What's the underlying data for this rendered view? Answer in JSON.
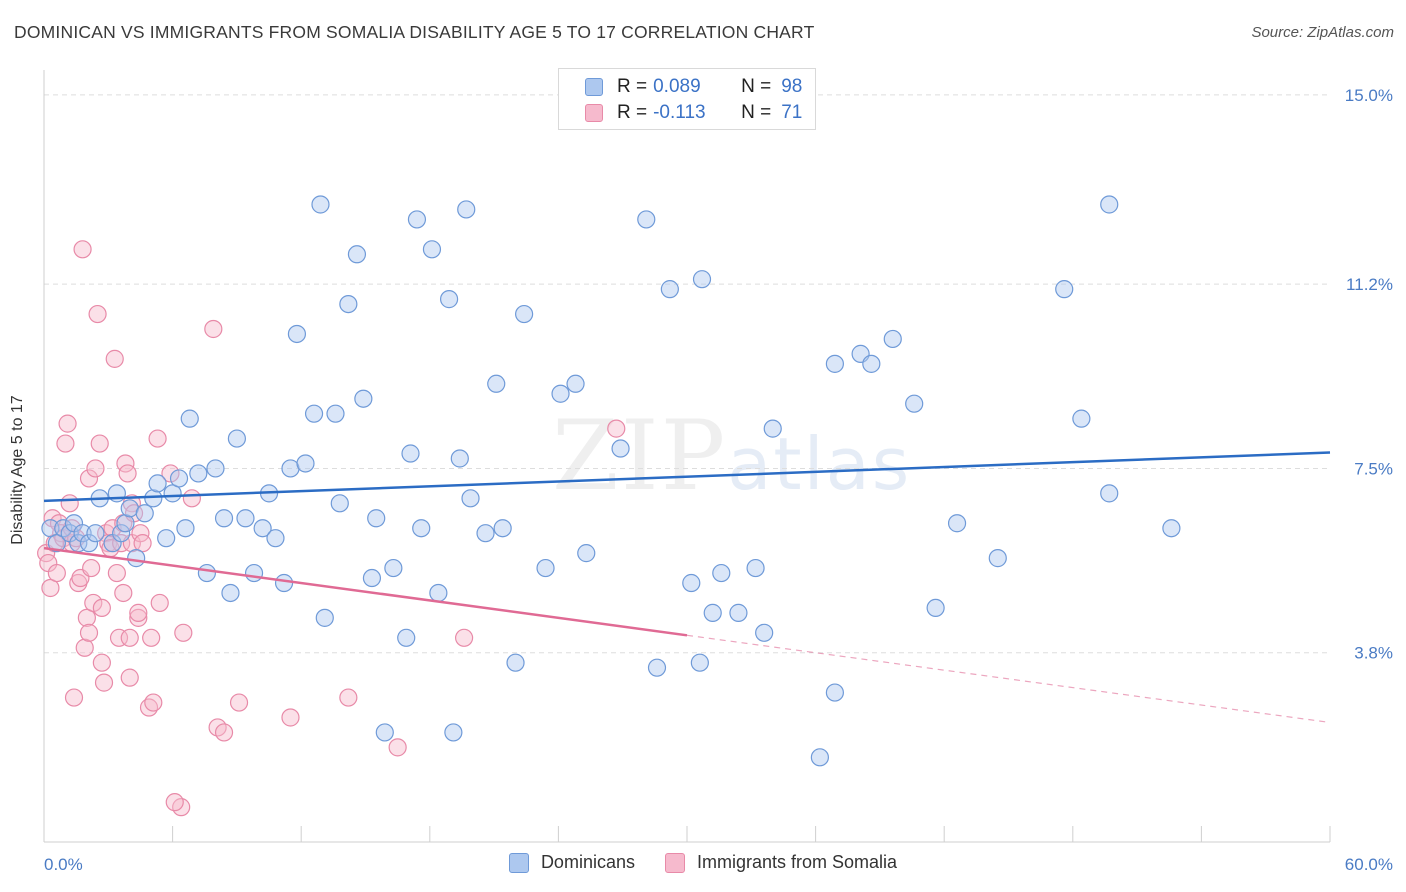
{
  "title": "DOMINICAN VS IMMIGRANTS FROM SOMALIA DISABILITY AGE 5 TO 17 CORRELATION CHART",
  "source": "Source: ZipAtlas.com",
  "watermark": {
    "zip": "ZIP",
    "atlas": "atlas"
  },
  "colors": {
    "blue_fill": "#adc8ef",
    "blue_stroke": "#6f9ad8",
    "blue_line": "#2b6cc4",
    "pink_fill": "#f6bacd",
    "pink_stroke": "#e88aa8",
    "pink_line": "#e06a94",
    "grid": "#dddddd",
    "tick_text": "#4a7bc4"
  },
  "stats": [
    {
      "r_label": "R =",
      "r_value": "0.089",
      "n_label": "N =",
      "n_value": "98"
    },
    {
      "r_label": "R =",
      "r_value": "-0.113",
      "n_label": "N =",
      "n_value": "71"
    }
  ],
  "chart_data": {
    "type": "scatter",
    "title": "DOMINICAN VS IMMIGRANTS FROM SOMALIA DISABILITY AGE 5 TO 17 CORRELATION CHART",
    "xlabel": "",
    "ylabel": "Disability Age 5 to 17",
    "xlim": [
      0,
      60
    ],
    "ylim": [
      0,
      15.5
    ],
    "x_tick_labels": [
      "0.0%",
      "60.0%"
    ],
    "y_ticks": [
      3.8,
      7.5,
      11.2,
      15.0
    ],
    "y_tick_labels": [
      "3.8%",
      "7.5%",
      "11.2%",
      "15.0%"
    ],
    "grid": true,
    "legend_position": "bottom",
    "series": [
      {
        "name": "Dominicans",
        "color": "#6f9ad8",
        "r": 0.089,
        "n": 98,
        "trend": {
          "x": [
            0,
            60
          ],
          "y": [
            6.85,
            7.82
          ]
        },
        "points": [
          [
            0.3,
            6.3
          ],
          [
            0.6,
            6.0
          ],
          [
            0.9,
            6.3
          ],
          [
            1.2,
            6.2
          ],
          [
            1.4,
            6.4
          ],
          [
            1.6,
            6.0
          ],
          [
            1.8,
            6.2
          ],
          [
            2.1,
            6.0
          ],
          [
            2.4,
            6.2
          ],
          [
            2.6,
            6.9
          ],
          [
            3.2,
            6.0
          ],
          [
            3.4,
            7.0
          ],
          [
            3.6,
            6.2
          ],
          [
            3.8,
            6.4
          ],
          [
            4.0,
            6.7
          ],
          [
            4.3,
            5.7
          ],
          [
            4.7,
            6.6
          ],
          [
            5.1,
            6.9
          ],
          [
            5.3,
            7.2
          ],
          [
            5.7,
            6.1
          ],
          [
            6.0,
            7.0
          ],
          [
            6.3,
            7.3
          ],
          [
            6.6,
            6.3
          ],
          [
            6.8,
            8.5
          ],
          [
            7.2,
            7.4
          ],
          [
            7.6,
            5.4
          ],
          [
            8.0,
            7.5
          ],
          [
            8.4,
            6.5
          ],
          [
            8.7,
            5.0
          ],
          [
            9.0,
            8.1
          ],
          [
            9.4,
            6.5
          ],
          [
            9.8,
            5.4
          ],
          [
            10.2,
            6.3
          ],
          [
            10.5,
            7.0
          ],
          [
            10.8,
            6.1
          ],
          [
            11.2,
            5.2
          ],
          [
            11.5,
            7.5
          ],
          [
            11.8,
            10.2
          ],
          [
            12.2,
            7.6
          ],
          [
            12.6,
            8.6
          ],
          [
            12.9,
            12.8
          ],
          [
            13.1,
            4.5
          ],
          [
            13.6,
            8.6
          ],
          [
            13.8,
            6.8
          ],
          [
            14.2,
            10.8
          ],
          [
            14.6,
            11.8
          ],
          [
            14.9,
            8.9
          ],
          [
            15.3,
            5.3
          ],
          [
            15.5,
            6.5
          ],
          [
            15.9,
            2.2
          ],
          [
            16.3,
            5.5
          ],
          [
            16.9,
            4.1
          ],
          [
            17.1,
            7.8
          ],
          [
            17.4,
            12.5
          ],
          [
            17.6,
            6.3
          ],
          [
            18.1,
            11.9
          ],
          [
            18.4,
            5.0
          ],
          [
            18.9,
            10.9
          ],
          [
            19.1,
            2.2
          ],
          [
            19.4,
            7.7
          ],
          [
            19.7,
            12.7
          ],
          [
            19.9,
            6.9
          ],
          [
            20.6,
            6.2
          ],
          [
            21.1,
            9.2
          ],
          [
            21.4,
            6.3
          ],
          [
            22.0,
            3.6
          ],
          [
            22.4,
            10.6
          ],
          [
            23.4,
            5.5
          ],
          [
            24.1,
            9.0
          ],
          [
            24.8,
            9.2
          ],
          [
            25.3,
            5.8
          ],
          [
            26.9,
            7.9
          ],
          [
            28.1,
            12.5
          ],
          [
            28.6,
            3.5
          ],
          [
            29.2,
            11.1
          ],
          [
            30.2,
            5.2
          ],
          [
            30.6,
            3.6
          ],
          [
            30.7,
            11.3
          ],
          [
            31.2,
            4.6
          ],
          [
            31.6,
            5.4
          ],
          [
            32.4,
            4.6
          ],
          [
            33.2,
            5.5
          ],
          [
            33.6,
            4.2
          ],
          [
            34.0,
            8.3
          ],
          [
            36.2,
            1.7
          ],
          [
            36.9,
            9.6
          ],
          [
            36.9,
            3.0
          ],
          [
            38.1,
            9.8
          ],
          [
            38.6,
            9.6
          ],
          [
            39.6,
            10.1
          ],
          [
            40.6,
            8.8
          ],
          [
            41.6,
            4.7
          ],
          [
            42.6,
            6.4
          ],
          [
            44.5,
            5.7
          ],
          [
            47.6,
            11.1
          ],
          [
            48.4,
            8.5
          ],
          [
            49.7,
            12.8
          ],
          [
            49.7,
            7.0
          ],
          [
            52.6,
            6.3
          ]
        ]
      },
      {
        "name": "Immigrants from Somalia",
        "color": "#e88aa8",
        "r": -0.113,
        "n": 71,
        "trend": {
          "x": [
            0,
            30
          ],
          "y": [
            5.9,
            4.15
          ]
        },
        "trend_extension": {
          "x": [
            30,
            60
          ],
          "y": [
            4.15,
            2.4
          ]
        },
        "points": [
          [
            0.1,
            5.8
          ],
          [
            0.2,
            5.6
          ],
          [
            0.3,
            5.1
          ],
          [
            0.4,
            6.5
          ],
          [
            0.5,
            6.0
          ],
          [
            0.6,
            5.4
          ],
          [
            0.7,
            6.4
          ],
          [
            0.8,
            6.2
          ],
          [
            0.9,
            6.1
          ],
          [
            1.0,
            8.0
          ],
          [
            1.1,
            8.4
          ],
          [
            1.2,
            6.8
          ],
          [
            1.3,
            6.3
          ],
          [
            1.3,
            6.0
          ],
          [
            1.4,
            2.9
          ],
          [
            1.5,
            6.1
          ],
          [
            1.6,
            5.2
          ],
          [
            1.7,
            5.3
          ],
          [
            1.8,
            11.9
          ],
          [
            1.9,
            3.9
          ],
          [
            2.0,
            4.5
          ],
          [
            2.1,
            7.3
          ],
          [
            2.1,
            4.2
          ],
          [
            2.2,
            5.5
          ],
          [
            2.3,
            4.8
          ],
          [
            2.4,
            7.5
          ],
          [
            2.5,
            10.6
          ],
          [
            2.6,
            8.0
          ],
          [
            2.7,
            4.7
          ],
          [
            2.7,
            3.6
          ],
          [
            2.8,
            3.2
          ],
          [
            2.9,
            6.2
          ],
          [
            3.0,
            6.0
          ],
          [
            3.1,
            5.9
          ],
          [
            3.2,
            6.3
          ],
          [
            3.3,
            9.7
          ],
          [
            3.4,
            5.4
          ],
          [
            3.5,
            4.1
          ],
          [
            3.6,
            6.0
          ],
          [
            3.7,
            5.0
          ],
          [
            3.7,
            6.4
          ],
          [
            3.8,
            7.6
          ],
          [
            3.9,
            7.4
          ],
          [
            4.0,
            3.3
          ],
          [
            4.0,
            4.1
          ],
          [
            4.1,
            6.8
          ],
          [
            4.1,
            6.0
          ],
          [
            4.2,
            6.6
          ],
          [
            4.4,
            4.5
          ],
          [
            4.4,
            4.6
          ],
          [
            4.5,
            6.2
          ],
          [
            4.6,
            6.0
          ],
          [
            4.9,
            2.7
          ],
          [
            5.0,
            4.1
          ],
          [
            5.1,
            2.8
          ],
          [
            5.4,
            4.8
          ],
          [
            5.3,
            8.1
          ],
          [
            5.9,
            7.4
          ],
          [
            6.4,
            0.7
          ],
          [
            6.5,
            4.2
          ],
          [
            6.9,
            6.9
          ],
          [
            7.9,
            10.3
          ],
          [
            8.1,
            2.3
          ],
          [
            8.4,
            2.2
          ],
          [
            9.1,
            2.8
          ],
          [
            11.5,
            2.5
          ],
          [
            14.2,
            2.9
          ],
          [
            16.5,
            1.9
          ],
          [
            19.6,
            4.1
          ],
          [
            26.7,
            8.3
          ],
          [
            6.1,
            0.8
          ]
        ]
      }
    ]
  }
}
